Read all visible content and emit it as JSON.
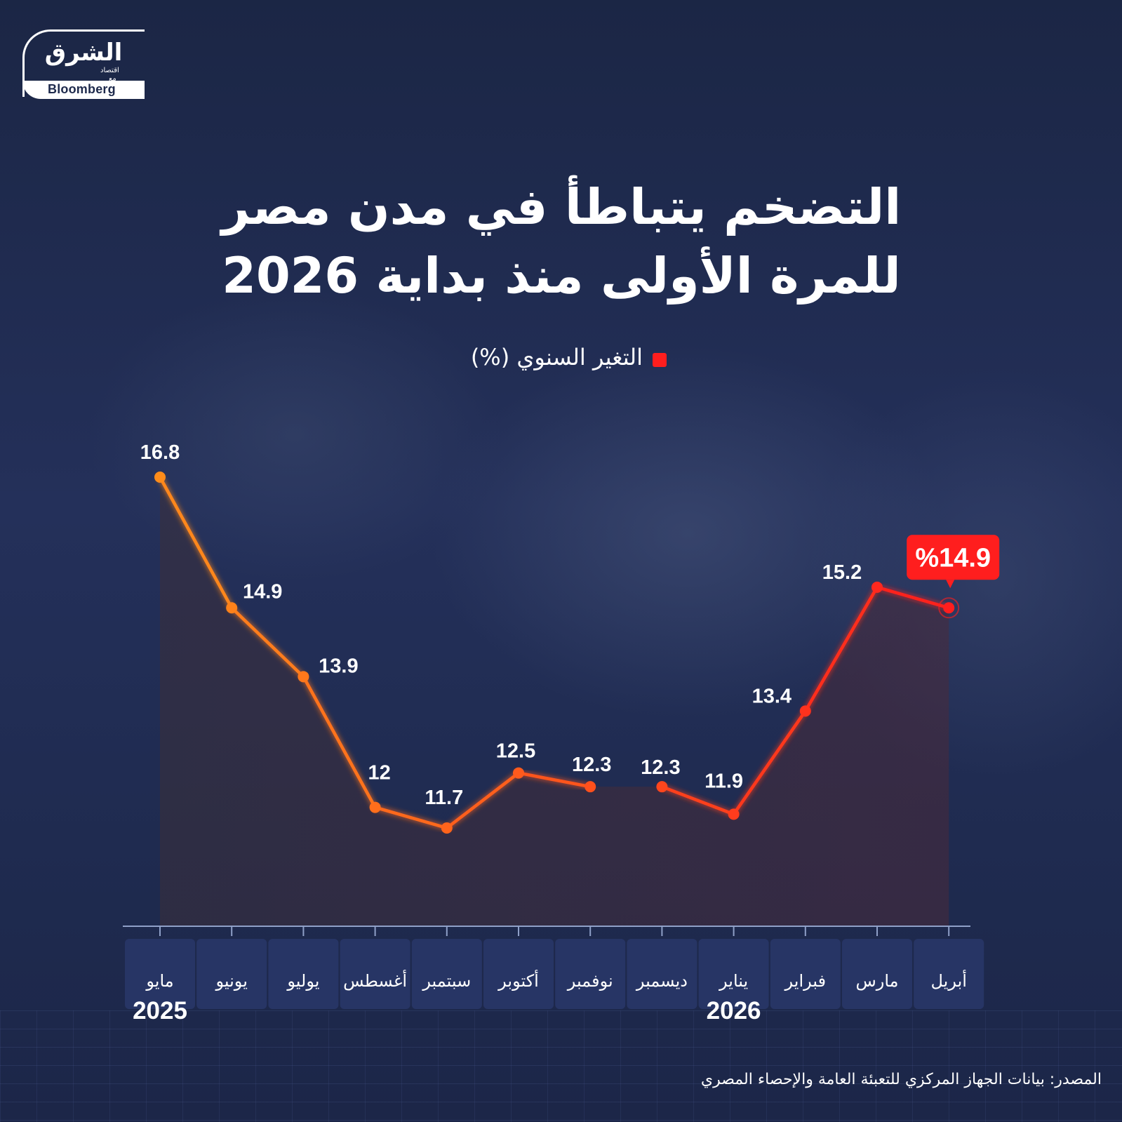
{
  "logo": {
    "arabic": "الشرق",
    "sub": "اقتصاد",
    "with": "مع",
    "bloomberg": "Bloomberg"
  },
  "title": {
    "line1": "التضخم يتباطأ في مدن مصر",
    "line2": "للمرة الأولى منذ بداية 2026"
  },
  "source": "المصدر: بيانات الجهاز المركزي للتعبئة العامة والإحصاء المصري",
  "colors": {
    "line_start": "#ff8c1a",
    "line_end": "#ff1e1e",
    "callout": "#ff1e1e"
  },
  "chart_data": {
    "type": "line",
    "legend": "التغير السنوي (%)",
    "legend_position": "top-center",
    "categories": [
      "مايو",
      "يونيو",
      "يوليو",
      "أغسطس",
      "سبتمبر",
      "أكتوبر",
      "نوفمبر",
      "ديسمبر",
      "يناير",
      "فبراير",
      "مارس",
      "أبريل"
    ],
    "year_labels": [
      {
        "index": 0,
        "label": "2025"
      },
      {
        "index": 8,
        "label": "2026"
      }
    ],
    "series": [
      {
        "name": "التغير السنوي (%)",
        "values": [
          16.8,
          14.9,
          13.9,
          12,
          11.7,
          12.5,
          12.3,
          12.3,
          11.9,
          13.4,
          15.2,
          14.9
        ],
        "labels": [
          "16.8",
          "14.9",
          "13.9",
          "12",
          "11.7",
          "12.5",
          "12.3",
          "12.3",
          "11.9",
          "13.4",
          "15.2",
          "%14.9"
        ]
      }
    ],
    "highlight_index": 11,
    "ylim": [
      11.7,
      16.8
    ],
    "grid": false,
    "xlabel": "",
    "ylabel": ""
  }
}
